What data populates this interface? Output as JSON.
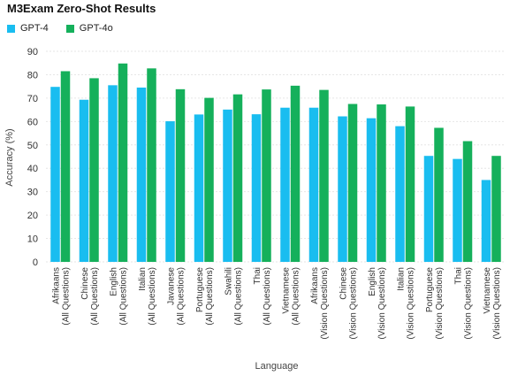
{
  "chart_data": {
    "type": "bar",
    "title": "M3Exam Zero-Shot Results",
    "xlabel": "Language",
    "ylabel": "Accuracy (%)",
    "ylim": [
      0,
      90
    ],
    "yticks": [
      0,
      10,
      20,
      30,
      40,
      50,
      60,
      70,
      80,
      90
    ],
    "grid": true,
    "legend_position": "top-left",
    "categories": [
      [
        "Afrikaans",
        "(All Questions)"
      ],
      [
        "Chinese",
        "(All Questions)"
      ],
      [
        "English",
        "(All Questions)"
      ],
      [
        "Italian",
        "(All Questions)"
      ],
      [
        "Javanese",
        "(All Questions)"
      ],
      [
        "Portuguese",
        "(All Questions)"
      ],
      [
        "Swahili",
        "(All Questions)"
      ],
      [
        "Thai",
        "(All Questions)"
      ],
      [
        "Vietnamese",
        "(All Questions)"
      ],
      [
        "Afrikaans",
        "(Vision Questions)"
      ],
      [
        "Chinese",
        "(Vision Questions)"
      ],
      [
        "English",
        "(Vision Questions)"
      ],
      [
        "Italian",
        "(Vision Questions)"
      ],
      [
        "Portuguese",
        "(Vision Questions)"
      ],
      [
        "Thai",
        "(Vision Questions)"
      ],
      [
        "Vietnamese",
        "(Vision Questions)"
      ]
    ],
    "series": [
      {
        "name": "GPT-4",
        "color": "#19bdf0",
        "values": [
          74.8,
          69.3,
          75.5,
          74.5,
          60.1,
          63.0,
          65.1,
          63.1,
          65.9,
          65.9,
          62.2,
          61.4,
          58.0,
          45.3,
          44.0,
          35.0
        ]
      },
      {
        "name": "GPT-4o",
        "color": "#15b05b",
        "values": [
          81.5,
          78.5,
          84.8,
          82.7,
          73.8,
          70.1,
          71.6,
          73.7,
          75.3,
          73.5,
          67.5,
          67.3,
          66.4,
          57.3,
          51.6,
          45.3
        ]
      }
    ]
  }
}
